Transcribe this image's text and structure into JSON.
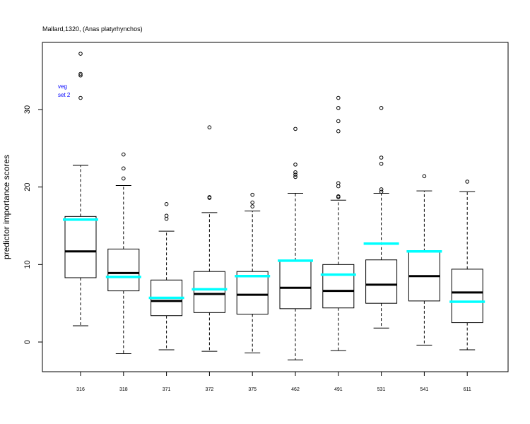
{
  "chart_data": {
    "type": "boxplot",
    "title": "Mallard,1320, (Anas platyrhynchos)",
    "xlabel": "",
    "ylabel": "predictor importance scores",
    "ylim": [
      -3.8,
      38.7
    ],
    "yticks": [
      0,
      10,
      20,
      30
    ],
    "grid": false,
    "annotation": [
      "veg",
      "set 2"
    ],
    "colors": {
      "box": "#000000",
      "median": "#000000",
      "reference": "#00ffff",
      "annotation": "#0000ff"
    },
    "categories": [
      "316",
      "318",
      "371",
      "372",
      "375",
      "462",
      "491",
      "531",
      "541",
      "611"
    ],
    "boxes": [
      {
        "category": "316",
        "whisker_low": 2.1,
        "q1": 8.3,
        "median": 11.7,
        "q3": 16.2,
        "whisker_high": 22.8,
        "outliers": [
          37.2,
          34.6,
          34.4,
          31.5
        ],
        "reference": 15.8
      },
      {
        "category": "318",
        "whisker_low": -1.5,
        "q1": 6.6,
        "median": 8.9,
        "q3": 12.0,
        "whisker_high": 20.2,
        "outliers": [
          24.2,
          22.4,
          21.1
        ],
        "reference": 8.4
      },
      {
        "category": "371",
        "whisker_low": -1.0,
        "q1": 3.4,
        "median": 5.3,
        "q3": 8.0,
        "whisker_high": 14.3,
        "outliers": [
          17.8,
          16.3,
          15.9
        ],
        "reference": 5.7
      },
      {
        "category": "372",
        "whisker_low": -1.2,
        "q1": 3.8,
        "median": 6.2,
        "q3": 9.1,
        "whisker_high": 16.7,
        "outliers": [
          27.7,
          18.7,
          18.6
        ],
        "reference": 6.8
      },
      {
        "category": "375",
        "whisker_low": -1.4,
        "q1": 3.6,
        "median": 6.1,
        "q3": 9.1,
        "whisker_high": 16.9,
        "outliers": [
          19.0,
          18.0,
          17.5
        ],
        "reference": 8.5
      },
      {
        "category": "462",
        "whisker_low": -2.3,
        "q1": 4.3,
        "median": 7.0,
        "q3": 10.5,
        "whisker_high": 19.2,
        "outliers": [
          27.5,
          22.9,
          21.9,
          21.6,
          21.3
        ],
        "reference": 10.5
      },
      {
        "category": "491",
        "whisker_low": -1.1,
        "q1": 4.4,
        "median": 6.6,
        "q3": 10.0,
        "whisker_high": 18.3,
        "outliers": [
          31.5,
          30.2,
          28.5,
          27.2,
          20.5,
          20.1,
          18.8,
          18.7
        ],
        "reference": 8.7
      },
      {
        "category": "531",
        "whisker_low": 1.8,
        "q1": 5.0,
        "median": 7.4,
        "q3": 10.6,
        "whisker_high": 19.2,
        "outliers": [
          30.2,
          23.8,
          23.0,
          19.7,
          19.4
        ],
        "reference": 12.7
      },
      {
        "category": "541",
        "whisker_low": -0.4,
        "q1": 5.3,
        "median": 8.5,
        "q3": 11.7,
        "whisker_high": 19.5,
        "outliers": [
          21.4
        ],
        "reference": 11.7
      },
      {
        "category": "611",
        "whisker_low": -1.0,
        "q1": 2.5,
        "median": 6.4,
        "q3": 9.4,
        "whisker_high": 19.4,
        "outliers": [
          20.7
        ],
        "reference": 5.2
      }
    ]
  }
}
